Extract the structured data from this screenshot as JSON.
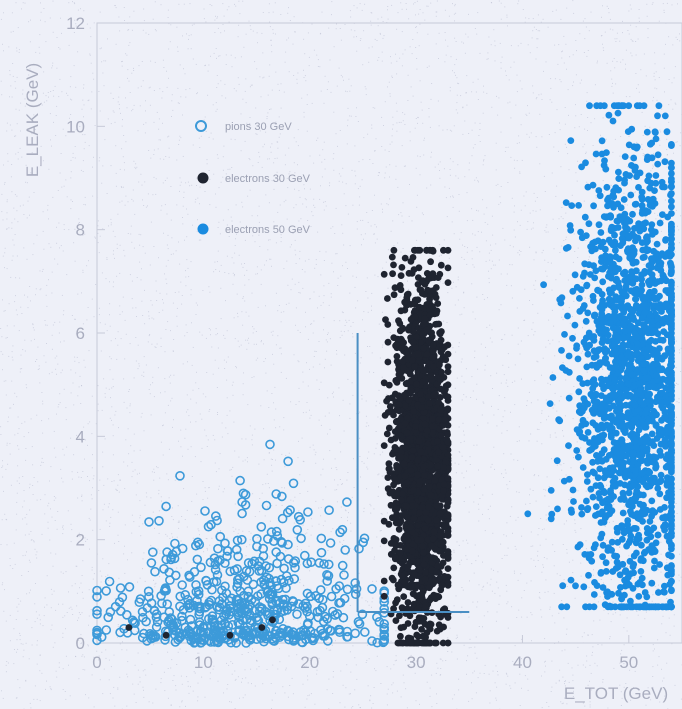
{
  "chart_data": {
    "type": "scatter",
    "title": "",
    "xlabel": "E_TOT (GeV)",
    "ylabel": "E_LEAK (GeV)",
    "xlim": [
      0,
      55
    ],
    "ylim": [
      0,
      12
    ],
    "x_ticks": [
      "0",
      "10",
      "20",
      "30",
      "40",
      "50"
    ],
    "y_ticks": [
      "0",
      "2",
      "4",
      "6",
      "8",
      "10",
      "12"
    ],
    "legend_position": "top-left",
    "grid": false,
    "series": [
      {
        "name": "pions 30 GeV",
        "marker": "open-circle",
        "color": "#3d9ad9",
        "cluster": {
          "x_range": [
            0,
            27
          ],
          "y_range": [
            0,
            4.2
          ],
          "x_mean": 14,
          "y_mean": 1.2,
          "count": 600
        }
      },
      {
        "name": "electrons 30 GeV",
        "marker": "filled-circle",
        "color": "#1f2430",
        "cluster": {
          "x_range": [
            27,
            33
          ],
          "y_range": [
            0,
            7.6
          ],
          "x_mean": 30.5,
          "y_mean": 3.5,
          "count": 2000
        }
      },
      {
        "name": "electrons 50 GeV",
        "marker": "filled-circle",
        "color": "#1a8be0",
        "cluster": {
          "x_range": [
            41,
            54
          ],
          "y_range": [
            0.7,
            10.4
          ],
          "x_mean": 50.5,
          "y_mean": 5.0,
          "count": 1800
        }
      }
    ],
    "cut_lines": [
      {
        "x": [
          24.5,
          24.5
        ],
        "y": [
          0.6,
          6.0
        ]
      },
      {
        "x": [
          24.5,
          35
        ],
        "y": [
          0.6,
          0.6
        ]
      }
    ]
  }
}
